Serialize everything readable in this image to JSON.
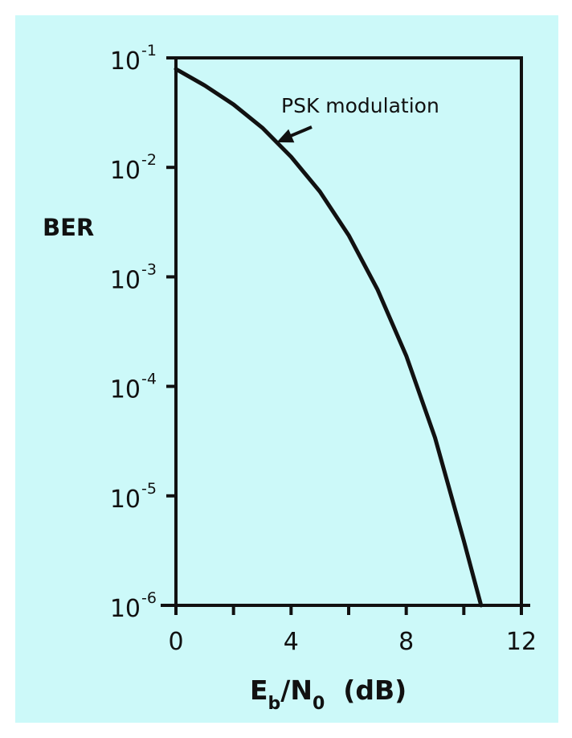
{
  "chart_data": {
    "type": "line",
    "ylabel": "BER",
    "xlabel": {
      "e": "E",
      "e_sub": "b",
      "slash_n": "/N",
      "n_sub": "0",
      "unit": "(dB)"
    },
    "yscale": "log",
    "xlim": [
      0,
      12
    ],
    "ylim": [
      1e-06,
      0.1
    ],
    "x_ticks": [
      {
        "value": 0,
        "label": "0"
      },
      {
        "value": 2,
        "label": ""
      },
      {
        "value": 4,
        "label": "4"
      },
      {
        "value": 6,
        "label": ""
      },
      {
        "value": 8,
        "label": "8"
      },
      {
        "value": 10,
        "label": ""
      },
      {
        "value": 12,
        "label": "12"
      }
    ],
    "y_ticks": [
      {
        "value": 0.1,
        "base": "10",
        "exponent": "-1"
      },
      {
        "value": 0.01,
        "base": "10",
        "exponent": "-2"
      },
      {
        "value": 0.001,
        "base": "10",
        "exponent": "-3"
      },
      {
        "value": 0.0001,
        "base": "10",
        "exponent": "-4"
      },
      {
        "value": 1e-05,
        "base": "10",
        "exponent": "-5"
      },
      {
        "value": 1e-06,
        "base": "10",
        "exponent": "-6"
      }
    ],
    "grid": false,
    "series": [
      {
        "name": "PSK modulation",
        "x": [
          0,
          1,
          2,
          3,
          4,
          5,
          6,
          7,
          8,
          9,
          10,
          10.6
        ],
        "y": [
          0.079,
          0.056,
          0.0375,
          0.023,
          0.0125,
          0.006,
          0.0024,
          0.00077,
          0.00019,
          3.4e-05,
          3.9e-06,
          1e-06
        ]
      }
    ],
    "annotations": [
      {
        "text": "PSK modulation",
        "arrow_to_x": 3.5
      }
    ]
  },
  "colors": {
    "background": "#ccf9f9",
    "line": "#111111"
  }
}
